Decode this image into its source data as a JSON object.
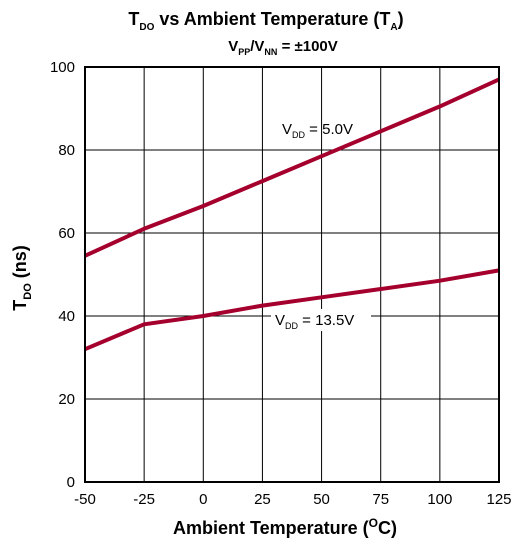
{
  "chart_data": {
    "type": "line",
    "title": {
      "main": "T",
      "main_sub": "DO",
      "mid": " vs Ambient Temperature (T",
      "mid_sub": "A",
      "end": ")"
    },
    "subtitle": {
      "a": "V",
      "a_sub": "PP",
      "b": "/V",
      "b_sub": "NN",
      "c": " = ±100V"
    },
    "xlabel": {
      "text": "Ambient Temperature (",
      "sup": "O",
      "end": "C)"
    },
    "ylabel": {
      "text": "T",
      "sub": "DO",
      "end": " (ns)"
    },
    "xlim": [
      -50,
      125
    ],
    "ylim": [
      0,
      100
    ],
    "x_ticks": [
      "-50",
      "-25",
      "0",
      "25",
      "50",
      "75",
      "100",
      "125"
    ],
    "y_ticks": [
      "0",
      "20",
      "40",
      "60",
      "80",
      "100"
    ],
    "grid": true,
    "series": [
      {
        "label": {
          "text": "V",
          "sub": "DD",
          "end": " = 5.0V"
        },
        "x": [
          -50,
          -25,
          0,
          25,
          50,
          75,
          100,
          125
        ],
        "values": [
          54.5,
          61,
          66.5,
          72.5,
          78.5,
          84.5,
          90.5,
          97
        ]
      },
      {
        "label": {
          "text": "V",
          "sub": "DD",
          "end": " = 13.5V"
        },
        "x": [
          -50,
          -25,
          0,
          25,
          50,
          75,
          100,
          125
        ],
        "values": [
          32,
          38,
          40,
          42.5,
          44.5,
          46.5,
          48.5,
          51
        ]
      }
    ],
    "line_color": "#a5002d",
    "grid_color": "#000000"
  }
}
